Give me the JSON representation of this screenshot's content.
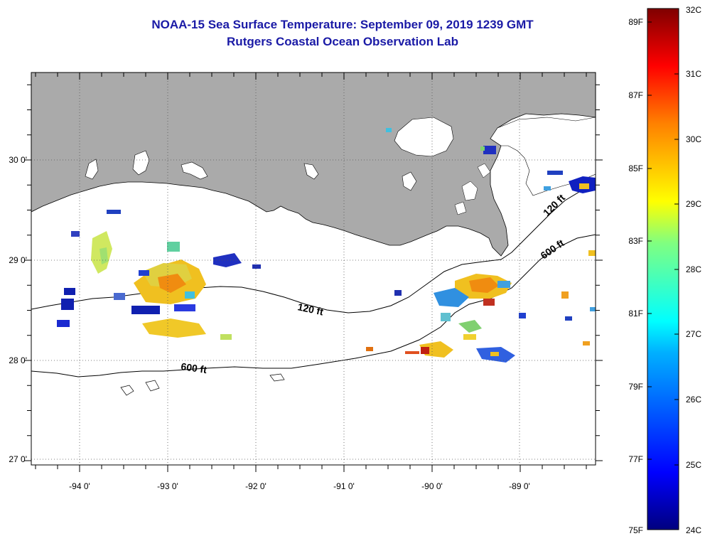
{
  "title": {
    "line1": "NOAA-15 Sea Surface Temperature:  September 09, 2019 1239 GMT",
    "line2": "Rutgers Coastal Ocean Observation Lab"
  },
  "map": {
    "lon_labels": [
      "-94 0'",
      "-93 0'",
      "-92 0'",
      "-91 0'",
      "-90 0'",
      "-89 0'"
    ],
    "lat_labels": [
      "30 0'",
      "29 0'",
      "28 0'",
      "27 0'"
    ],
    "lon_range": [
      -94.55,
      -88.0
    ],
    "lat_range": [
      26.95,
      30.85
    ],
    "land_color": "#aaaaaa",
    "ocean_color": "#ffffff",
    "contour_labels": [
      "120 ft",
      "600 ft",
      "120 ft",
      "600 ft"
    ]
  },
  "colorbar": {
    "fahrenheit_labels": [
      "89F",
      "87F",
      "85F",
      "83F",
      "81F",
      "79F",
      "77F",
      "75F"
    ],
    "celsius_labels": [
      "32C",
      "31C",
      "30C",
      "29C",
      "28C",
      "27C",
      "26C",
      "25C",
      "24C"
    ],
    "range_c": [
      24,
      32
    ]
  }
}
